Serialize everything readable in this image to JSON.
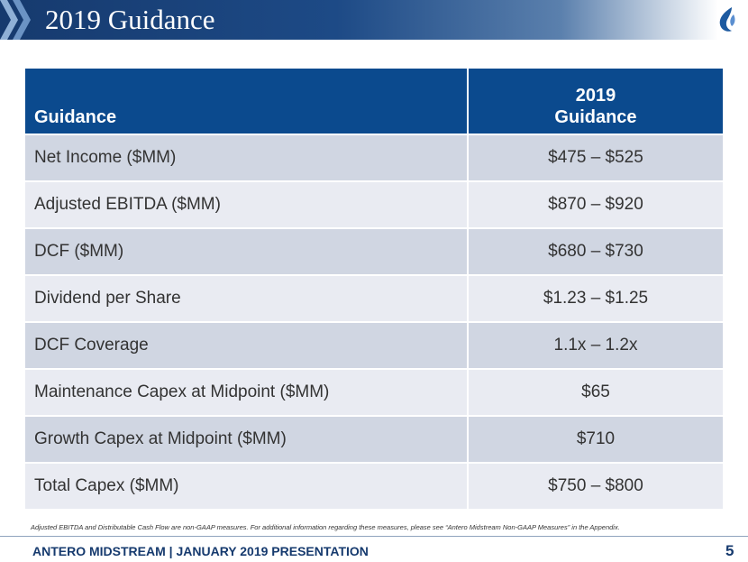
{
  "slide": {
    "title": "2019 Guidance",
    "footnote": "Adjusted EBITDA and Distributable Cash Flow are non-GAAP measures.  For additional information regarding these measures, please see “Antero Midstream Non-GAAP Measures” in the Appendix.",
    "footer": "ANTERO MIDSTREAM | JANUARY 2019 PRESENTATION",
    "page_number": "5"
  },
  "table": {
    "header_label": "Guidance",
    "header_value_line1": "2019",
    "header_value_line2": "Guidance",
    "rows": [
      {
        "label": "Net Income ($MM)",
        "value": "$475 – $525"
      },
      {
        "label": "Adjusted EBITDA ($MM)",
        "value": "$870 – $920"
      },
      {
        "label": "DCF ($MM)",
        "value": "$680 – $730"
      },
      {
        "label": "Dividend per Share",
        "value": "$1.23 – $1.25"
      },
      {
        "label": "DCF Coverage",
        "value": "1.1x – 1.2x"
      },
      {
        "label": "Maintenance Capex at Midpoint ($MM)",
        "value": "$65"
      },
      {
        "label": "Growth Capex at Midpoint ($MM)",
        "value": "$710"
      },
      {
        "label": "Total Capex ($MM)",
        "value": "$750 – $800"
      }
    ]
  },
  "colors": {
    "header_bg": "#0b4a8e",
    "row_dark": "#d0d6e2",
    "row_light": "#e9ebf2",
    "title_bar": "#163a6e"
  },
  "icons": {
    "title_decoration": "chevron-stripes-icon",
    "logo": "flame-logo-icon"
  }
}
